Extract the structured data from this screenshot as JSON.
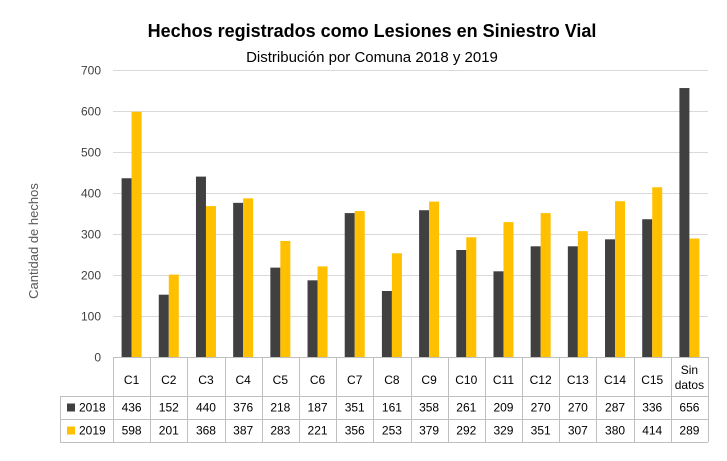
{
  "chart_data": {
    "type": "bar",
    "title": "Hechos registrados como Lesiones en Siniestro Vial",
    "subtitle": "Distribución por Comuna 2018 y 2019",
    "ylabel": "Cantidad de hechos",
    "xlabel": "",
    "ylim": [
      0,
      700
    ],
    "yticks": [
      0,
      100,
      200,
      300,
      400,
      500,
      600,
      700
    ],
    "grid": true,
    "legend": "data-table",
    "categories": [
      "C1",
      "C2",
      "C3",
      "C4",
      "C5",
      "C6",
      "C7",
      "C8",
      "C9",
      "C10",
      "C11",
      "C12",
      "C13",
      "C14",
      "C15",
      "Sin datos"
    ],
    "series": [
      {
        "name": "2018",
        "color": "#404040",
        "values": [
          436,
          152,
          440,
          376,
          218,
          187,
          351,
          161,
          358,
          261,
          209,
          270,
          270,
          287,
          336,
          656
        ]
      },
      {
        "name": "2019",
        "color": "#FFC000",
        "values": [
          598,
          201,
          368,
          387,
          283,
          221,
          356,
          253,
          379,
          292,
          329,
          351,
          307,
          380,
          414,
          289
        ]
      }
    ]
  }
}
